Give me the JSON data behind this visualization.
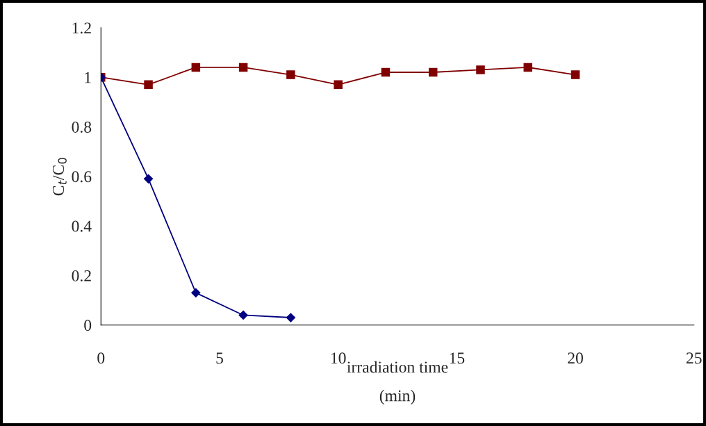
{
  "chart_data": {
    "type": "line",
    "xlabel": "irradiation time\n(min)",
    "ylabel": "C$_{t}$/C$_{0}$",
    "xlim": [
      0,
      25
    ],
    "xticks": [
      0,
      5,
      10,
      15,
      20,
      25
    ],
    "ylim": [
      0,
      1.2
    ],
    "yticks": [
      0,
      0.2,
      0.4,
      0.6,
      0.8,
      1,
      1.2
    ],
    "grid": false,
    "legend": false,
    "series": [
      {
        "color": "#000080",
        "marker": "diamond",
        "x": [
          0,
          2,
          4,
          6,
          8
        ],
        "values": [
          1,
          0.59,
          0.13,
          0.04,
          0.03
        ]
      },
      {
        "color": "#800000",
        "marker": "square",
        "x": [
          0,
          2,
          4,
          6,
          8,
          10,
          12,
          14,
          16,
          18,
          20
        ],
        "values": [
          1,
          0.97,
          1.04,
          1.04,
          1.01,
          0.97,
          1.02,
          1.02,
          1.03,
          1.04,
          1.01
        ]
      }
    ]
  }
}
